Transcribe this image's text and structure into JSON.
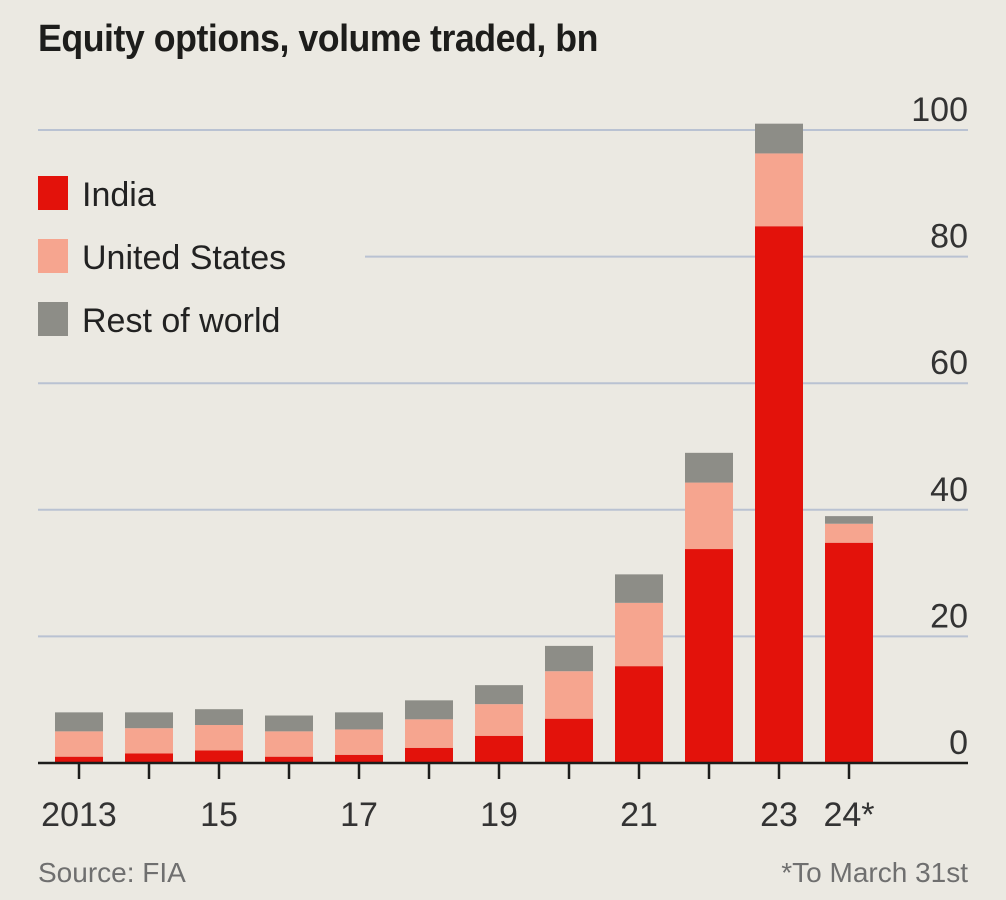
{
  "chart_data": {
    "type": "bar",
    "stacked": true,
    "title": "Equity options, volume traded, bn",
    "categories": [
      "2013",
      "2014",
      "2015",
      "2016",
      "2017",
      "2018",
      "2019",
      "2020",
      "2021",
      "2022",
      "2023",
      "2024*"
    ],
    "x_tick_labels": [
      {
        "index": 0,
        "label": "2013"
      },
      {
        "index": 2,
        "label": "15"
      },
      {
        "index": 4,
        "label": "17"
      },
      {
        "index": 6,
        "label": "19"
      },
      {
        "index": 8,
        "label": "21"
      },
      {
        "index": 10,
        "label": "23"
      },
      {
        "index": 11,
        "label": "24*"
      }
    ],
    "series": [
      {
        "name": "India",
        "color": "#e3120b",
        "values": [
          1.0,
          1.5,
          2.0,
          1.0,
          1.3,
          2.4,
          4.3,
          7.0,
          15.3,
          33.8,
          84.8,
          34.8
        ]
      },
      {
        "name": "United States",
        "color": "#f6a58f",
        "values": [
          4.0,
          4.0,
          4.0,
          4.0,
          4.0,
          4.5,
          5.0,
          7.5,
          10.0,
          10.5,
          11.5,
          3.0
        ]
      },
      {
        "name": "Rest of world",
        "color": "#8d8d87",
        "values": [
          3.0,
          2.5,
          2.5,
          2.5,
          2.7,
          3.0,
          3.0,
          4.0,
          4.5,
          4.7,
          4.7,
          1.2
        ]
      }
    ],
    "ylim": [
      0,
      100
    ],
    "y_ticks": [
      0,
      20,
      40,
      60,
      80,
      100
    ],
    "xlabel": "",
    "ylabel": "",
    "grid": true,
    "legend_position": "top-left"
  },
  "footer": {
    "source": "Source: FIA",
    "note": "*To March 31st"
  }
}
